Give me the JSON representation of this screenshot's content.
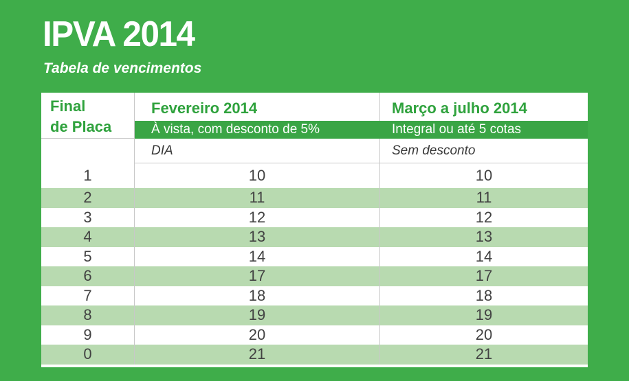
{
  "title": "IPVA 2014",
  "subtitle": "Tabela de vencimentos",
  "table": {
    "col1_header_line1": "Final",
    "col1_header_line2": "de Placa",
    "col2_header": "Fevereiro 2014",
    "col3_header": "Março a julho 2014",
    "col2_subheader": "À vista, com desconto de 5%",
    "col3_subheader": "Integral ou até 5 cotas",
    "col2_note": "DIA",
    "col3_note": "Sem desconto"
  },
  "chart_data": {
    "type": "table",
    "title": "IPVA 2014",
    "subtitle": "Tabela de vencimentos",
    "columns": [
      "Final de Placa",
      "Fevereiro 2014 — À vista, com desconto de 5% (DIA)",
      "Março a julho 2014 — Integral ou até 5 cotas (Sem desconto)"
    ],
    "rows": [
      [
        "1",
        "10",
        "10"
      ],
      [
        "2",
        "11",
        "11"
      ],
      [
        "3",
        "12",
        "12"
      ],
      [
        "4",
        "13",
        "13"
      ],
      [
        "5",
        "14",
        "14"
      ],
      [
        "6",
        "17",
        "17"
      ],
      [
        "7",
        "18",
        "18"
      ],
      [
        "8",
        "19",
        "19"
      ],
      [
        "9",
        "20",
        "20"
      ],
      [
        "0",
        "21",
        "21"
      ]
    ],
    "layout": {
      "striped_rows": "every 2nd data row highlighted",
      "grid": "light gray column dividers"
    }
  },
  "colors": {
    "green_bg": "#3fad4a",
    "green_bar": "#3aa545",
    "green_text": "#2fa23d",
    "stripe": "#b8dab0",
    "border": "#c8c8c8",
    "ink": "#424242",
    "note_ink": "#383838"
  }
}
